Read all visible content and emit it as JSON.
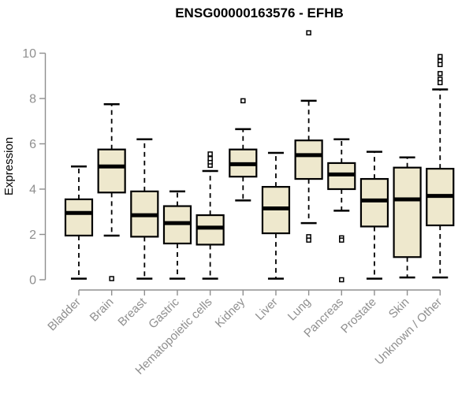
{
  "chart_data": {
    "type": "boxplot",
    "title": "ENSG00000163576 - EFHB",
    "ylabel": "Expression",
    "ylim": [
      0,
      10
    ],
    "yticks": [
      0,
      2,
      4,
      6,
      8,
      10
    ],
    "grid": false,
    "legend": "none",
    "boxes": [
      {
        "category": "Bladder",
        "low": 0.05,
        "q1": 1.95,
        "median": 2.95,
        "q3": 3.55,
        "high": 5.0,
        "outliers": []
      },
      {
        "category": "Brain",
        "low": 1.95,
        "q1": 3.85,
        "median": 5.0,
        "q3": 5.75,
        "high": 7.75,
        "outliers": [
          0.05
        ]
      },
      {
        "category": "Breast",
        "low": 0.05,
        "q1": 1.9,
        "median": 2.85,
        "q3": 3.9,
        "high": 6.2,
        "outliers": []
      },
      {
        "category": "Gastric",
        "low": 0.05,
        "q1": 1.6,
        "median": 2.5,
        "q3": 3.25,
        "high": 3.9,
        "outliers": []
      },
      {
        "category": "Hematopoietic cells",
        "low": 0.05,
        "q1": 1.55,
        "median": 2.3,
        "q3": 2.85,
        "high": 4.8,
        "outliers": [
          5.05,
          5.2,
          5.35,
          5.55
        ]
      },
      {
        "category": "Kidney",
        "low": 3.5,
        "q1": 4.55,
        "median": 5.1,
        "q3": 5.75,
        "high": 6.65,
        "outliers": [
          7.9
        ]
      },
      {
        "category": "Liver",
        "low": 0.05,
        "q1": 2.05,
        "median": 3.15,
        "q3": 4.1,
        "high": 5.6,
        "outliers": []
      },
      {
        "category": "Lung",
        "low": 2.5,
        "q1": 4.45,
        "median": 5.5,
        "q3": 6.15,
        "high": 7.9,
        "outliers": [
          10.9,
          1.9,
          1.75
        ]
      },
      {
        "category": "Pancreas",
        "low": 3.05,
        "q1": 4.0,
        "median": 4.65,
        "q3": 5.15,
        "high": 6.2,
        "outliers": [
          1.85,
          1.75,
          0.0
        ]
      },
      {
        "category": "Prostate",
        "low": 0.05,
        "q1": 2.35,
        "median": 3.5,
        "q3": 4.45,
        "high": 5.65,
        "outliers": []
      },
      {
        "category": "Skin",
        "low": 0.1,
        "q1": 1.0,
        "median": 3.55,
        "q3": 4.95,
        "high": 5.4,
        "outliers": []
      },
      {
        "category": "Unknown / Other",
        "low": 0.1,
        "q1": 2.4,
        "median": 3.7,
        "q3": 4.9,
        "high": 8.4,
        "outliers": [
          9.85,
          9.65,
          9.5,
          9.1,
          8.85,
          8.7
        ]
      }
    ],
    "colors": {
      "box_fill": "#EEE8CD",
      "box_border": "#000000",
      "median": "#000000",
      "whisker": "#000000",
      "outlier": "#000000",
      "axis": "#8F8F8F",
      "tick_label": "#8F8F8F",
      "title": "#000000",
      "background": "#FFFFFF"
    }
  }
}
